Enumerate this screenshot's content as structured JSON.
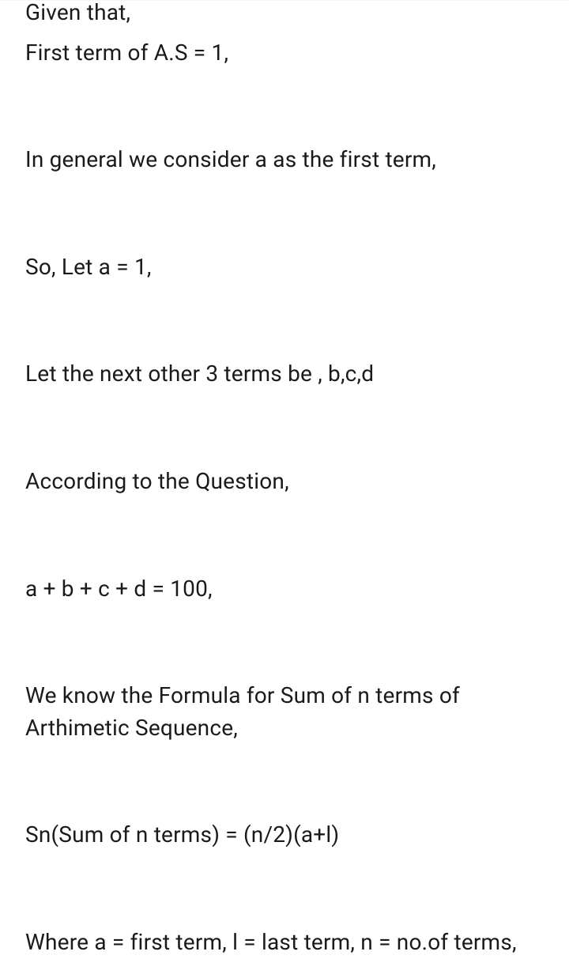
{
  "lines": {
    "l1": "Given that,",
    "l2": "First term of A.S = 1,",
    "l3": "In general we consider a as the first term,",
    "l4": "So, Let a = 1,",
    "l5": "Let the next other 3 terms be , b,c,d",
    "l6": "According to the Question,",
    "l7": "a + b + c + d = 100,",
    "l8": "We know the Formula for Sum of n terms of Arthimetic Sequence,",
    "l9": "Sn(Sum of n terms) = (n/2)(a+l)",
    "l10": "Where a = first term, l = last term, n = no.of terms,"
  },
  "styling": {
    "background_color": "#ffffff",
    "text_color": "#1a1a1a",
    "font_size": 28,
    "line_height": 1.45,
    "paragraph_gap": 95,
    "padding_horizontal": 32
  }
}
